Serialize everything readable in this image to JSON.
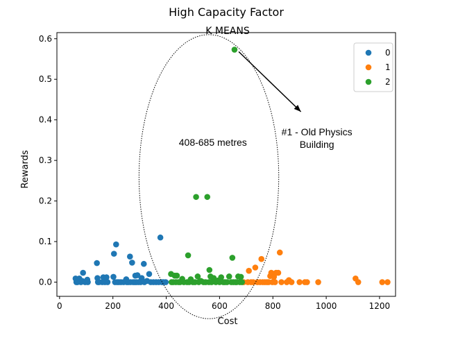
{
  "chart_data": {
    "type": "scatter",
    "suptitle": "High Capacity Factor",
    "title": "K MEANS",
    "xlabel": "Cost",
    "ylabel": "Rewards",
    "xlim": [
      -10,
      1260
    ],
    "ylim": [
      -0.035,
      0.615
    ],
    "xticks": [
      0,
      200,
      400,
      600,
      800,
      1000,
      1200
    ],
    "yticks": [
      0.0,
      0.1,
      0.2,
      0.3,
      0.4,
      0.5,
      0.6
    ],
    "xtick_labels": [
      "0",
      "200",
      "400",
      "600",
      "800",
      "1000",
      "1200"
    ],
    "ytick_labels": [
      "0.0",
      "0.1",
      "0.2",
      "0.3",
      "0.4",
      "0.5",
      "0.6"
    ],
    "legend_position": "top-right",
    "grid": false,
    "series": [
      {
        "name": "0",
        "color": "#1f77b4",
        "points": [
          [
            60,
            0.009
          ],
          [
            63,
            0.0
          ],
          [
            67,
            0.0
          ],
          [
            70,
            0.003
          ],
          [
            74,
            0.009
          ],
          [
            80,
            0.0
          ],
          [
            85,
            0.003
          ],
          [
            88,
            0.023
          ],
          [
            96,
            0.0
          ],
          [
            104,
            0.006
          ],
          [
            106,
            0.0
          ],
          [
            140,
            0.047
          ],
          [
            142,
            0.01
          ],
          [
            144,
            0.0
          ],
          [
            148,
            0.0
          ],
          [
            160,
            0.0
          ],
          [
            164,
            0.012
          ],
          [
            168,
            0.005
          ],
          [
            170,
            0.0
          ],
          [
            176,
            0.012
          ],
          [
            180,
            0.0
          ],
          [
            202,
            0.013
          ],
          [
            204,
            0.07
          ],
          [
            208,
            0.0
          ],
          [
            212,
            0.093
          ],
          [
            216,
            0.0
          ],
          [
            222,
            0.0
          ],
          [
            230,
            0.0
          ],
          [
            240,
            0.0
          ],
          [
            250,
            0.007
          ],
          [
            252,
            0.0
          ],
          [
            258,
            0.0
          ],
          [
            264,
            0.063
          ],
          [
            266,
            0.0
          ],
          [
            272,
            0.048
          ],
          [
            276,
            0.0
          ],
          [
            282,
            0.0
          ],
          [
            284,
            0.016
          ],
          [
            288,
            0.0
          ],
          [
            292,
            0.017
          ],
          [
            296,
            0.0
          ],
          [
            304,
            0.0
          ],
          [
            308,
            0.01
          ],
          [
            316,
            0.045
          ],
          [
            318,
            0.0
          ],
          [
            328,
            0.003
          ],
          [
            336,
            0.02
          ],
          [
            342,
            0.0
          ],
          [
            352,
            0.0
          ],
          [
            362,
            0.0
          ],
          [
            372,
            0.0
          ],
          [
            378,
            0.11
          ],
          [
            384,
            0.0
          ],
          [
            390,
            0.0
          ],
          [
            398,
            0.0
          ]
        ]
      },
      {
        "name": "1",
        "color": "#ff7f0e",
        "points": [
          [
            690,
            0.0
          ],
          [
            706,
            0.0
          ],
          [
            710,
            0.028
          ],
          [
            718,
            0.0
          ],
          [
            726,
            0.0
          ],
          [
            734,
            0.036
          ],
          [
            742,
            0.0
          ],
          [
            752,
            0.0
          ],
          [
            757,
            0.057
          ],
          [
            762,
            0.0
          ],
          [
            770,
            0.0
          ],
          [
            778,
            0.0
          ],
          [
            784,
            0.0
          ],
          [
            790,
            0.015
          ],
          [
            794,
            0.023
          ],
          [
            798,
            0.0
          ],
          [
            804,
            0.013
          ],
          [
            808,
            0.0
          ],
          [
            812,
            0.023
          ],
          [
            820,
            0.023
          ],
          [
            826,
            0.073
          ],
          [
            832,
            0.0
          ],
          [
            852,
            0.0
          ],
          [
            860,
            0.005
          ],
          [
            870,
            0.0
          ],
          [
            900,
            0.0
          ],
          [
            920,
            0.0
          ],
          [
            928,
            0.0
          ],
          [
            970,
            0.0
          ],
          [
            1110,
            0.009
          ],
          [
            1120,
            0.0
          ],
          [
            1210,
            0.0
          ],
          [
            1230,
            0.0
          ]
        ]
      },
      {
        "name": "2",
        "color": "#2ca02c",
        "points": [
          [
            418,
            0.02
          ],
          [
            420,
            0.0
          ],
          [
            426,
            0.0
          ],
          [
            432,
            0.016
          ],
          [
            436,
            0.0
          ],
          [
            440,
            0.016
          ],
          [
            446,
            0.0
          ],
          [
            452,
            0.0
          ],
          [
            460,
            0.008
          ],
          [
            466,
            0.0
          ],
          [
            478,
            0.0
          ],
          [
            482,
            0.066
          ],
          [
            486,
            0.0
          ],
          [
            492,
            0.007
          ],
          [
            500,
            0.0
          ],
          [
            508,
            0.0
          ],
          [
            512,
            0.21
          ],
          [
            518,
            0.014
          ],
          [
            522,
            0.0
          ],
          [
            530,
            0.003
          ],
          [
            540,
            0.0
          ],
          [
            548,
            0.0
          ],
          [
            554,
            0.21
          ],
          [
            560,
            0.0
          ],
          [
            562,
            0.03
          ],
          [
            566,
            0.014
          ],
          [
            570,
            0.0
          ],
          [
            578,
            0.01
          ],
          [
            586,
            0.0
          ],
          [
            594,
            0.004
          ],
          [
            600,
            0.0
          ],
          [
            606,
            0.012
          ],
          [
            614,
            0.0
          ],
          [
            620,
            0.0
          ],
          [
            628,
            0.0
          ],
          [
            636,
            0.014
          ],
          [
            644,
            0.0
          ],
          [
            648,
            0.06
          ],
          [
            652,
            0.0
          ],
          [
            656,
            0.573
          ],
          [
            660,
            0.0
          ],
          [
            664,
            0.0
          ],
          [
            670,
            0.014
          ],
          [
            676,
            0.0
          ],
          [
            680,
            0.013
          ],
          [
            684,
            0.0
          ]
        ]
      }
    ],
    "annotations": [
      {
        "id": "range",
        "text": "408-685 metres",
        "x": 575,
        "y": 0.345
      },
      {
        "id": "pointer",
        "lines": [
          "#1 - Old Physics",
          "Building"
        ],
        "x": 965,
        "y": 0.37,
        "arrow_from": [
          672,
          0.568
        ],
        "arrow_to": [
          905,
          0.42
        ]
      }
    ],
    "ellipse": {
      "cx": 560,
      "cy": 0.26,
      "rx": 262,
      "ry": 0.35
    }
  }
}
